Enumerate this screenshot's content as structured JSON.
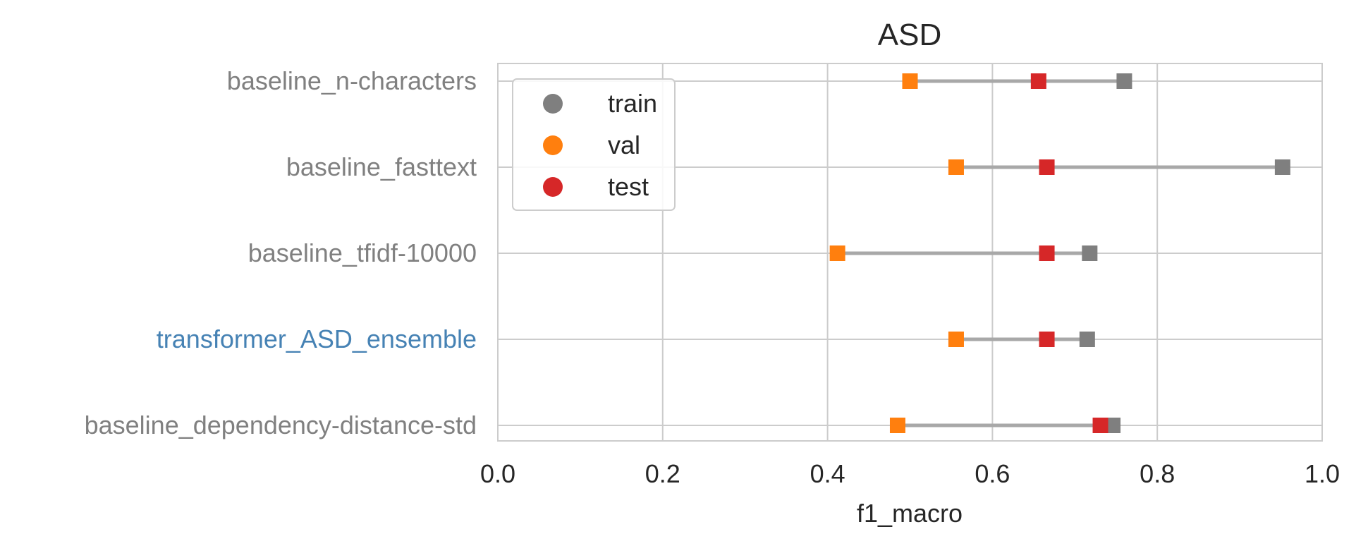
{
  "chart_data": {
    "type": "scatter",
    "title": "ASD",
    "xlabel": "f1_macro",
    "ylabel": "",
    "xlim": [
      0.0,
      1.0
    ],
    "x_ticks": [
      0.0,
      0.2,
      0.4,
      0.6,
      0.8,
      1.0
    ],
    "x_tick_labels": [
      "0.0",
      "0.2",
      "0.4",
      "0.6",
      "0.8",
      "1.0"
    ],
    "grid": true,
    "legend_position": "top-left",
    "categories": [
      "baseline_n-characters",
      "baseline_fasttext",
      "baseline_tfidf-10000",
      "transformer_ASD_ensemble",
      "baseline_dependency-distance-std"
    ],
    "category_colors": [
      "#808080",
      "#808080",
      "#808080",
      "#4682b4",
      "#808080"
    ],
    "range_line_color": "#a8a8a8",
    "series": [
      {
        "name": "train",
        "color": "#7f7f7f",
        "values": [
          0.76,
          0.952,
          0.718,
          0.715,
          0.746
        ]
      },
      {
        "name": "val",
        "color": "#ff7f0e",
        "values": [
          0.5,
          0.556,
          0.412,
          0.556,
          0.485
        ]
      },
      {
        "name": "test",
        "color": "#d62728",
        "values": [
          0.656,
          0.666,
          0.666,
          0.666,
          0.731
        ]
      }
    ]
  }
}
